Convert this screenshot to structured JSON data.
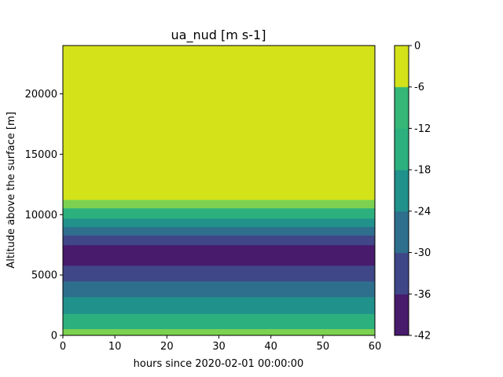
{
  "chart_data": {
    "type": "heatmap",
    "title": "ua_nud [m s-1]",
    "xlabel": "hours since 2020-02-01 00:00:00",
    "ylabel": "Altitude above the surface [m]",
    "xlim": [
      0,
      60
    ],
    "ylim": [
      0,
      24000
    ],
    "x_ticks": [
      0,
      10,
      20,
      30,
      40,
      50,
      60
    ],
    "y_ticks": [
      0,
      5000,
      10000,
      15000,
      20000
    ],
    "colorbar": {
      "levels": [
        -42,
        -36,
        -30,
        -24,
        -18,
        -12,
        -6,
        0
      ],
      "colors": [
        "#481b6d",
        "#3f4788",
        "#2e6f8e",
        "#21918c",
        "#2cb17e",
        "#36b677",
        "#7cd250",
        "#d4e21a"
      ],
      "tick_labels": [
        "-42",
        "-36",
        "-30",
        "-24",
        "-18",
        "-12",
        "-6",
        "0"
      ]
    },
    "bands": [
      {
        "y0": 0,
        "y1": 550,
        "level_index": 6
      },
      {
        "y0": 550,
        "y1": 1800,
        "level_index": 4
      },
      {
        "y0": 1800,
        "y1": 3200,
        "level_index": 3
      },
      {
        "y0": 3200,
        "y1": 4500,
        "level_index": 2
      },
      {
        "y0": 4500,
        "y1": 5800,
        "level_index": 1
      },
      {
        "y0": 5800,
        "y1": 7500,
        "level_index": 0
      },
      {
        "y0": 7500,
        "y1": 8300,
        "level_index": 1
      },
      {
        "y0": 8300,
        "y1": 9000,
        "level_index": 2
      },
      {
        "y0": 9000,
        "y1": 9700,
        "level_index": 3
      },
      {
        "y0": 9700,
        "y1": 10550,
        "level_index": 4
      },
      {
        "y0": 10550,
        "y1": 11250,
        "level_index": 6
      },
      {
        "y0": 11250,
        "y1": 24000,
        "level_index": 7
      }
    ]
  }
}
